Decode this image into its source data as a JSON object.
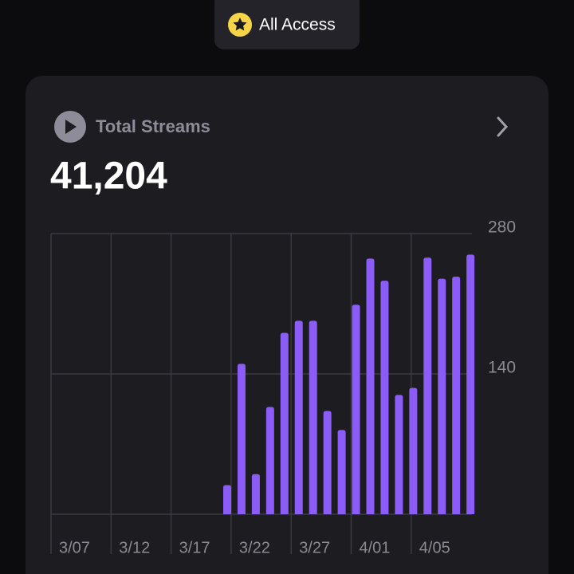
{
  "header": {
    "badge": "All Access"
  },
  "card": {
    "label": "Total Streams",
    "total": "41,204"
  },
  "chart_data": {
    "type": "bar",
    "values": [
      29,
      150,
      40,
      107,
      181,
      193,
      193,
      103,
      84,
      209,
      255,
      233,
      119,
      126,
      256,
      235,
      237,
      259
    ],
    "color": "#8b5cf6",
    "xticks": [
      "3/07",
      "3/12",
      "3/17",
      "3/22",
      "3/27",
      "4/01",
      "4/05"
    ],
    "ylim": [
      0,
      280
    ],
    "yticks": [
      140,
      280
    ],
    "grid": true
  }
}
